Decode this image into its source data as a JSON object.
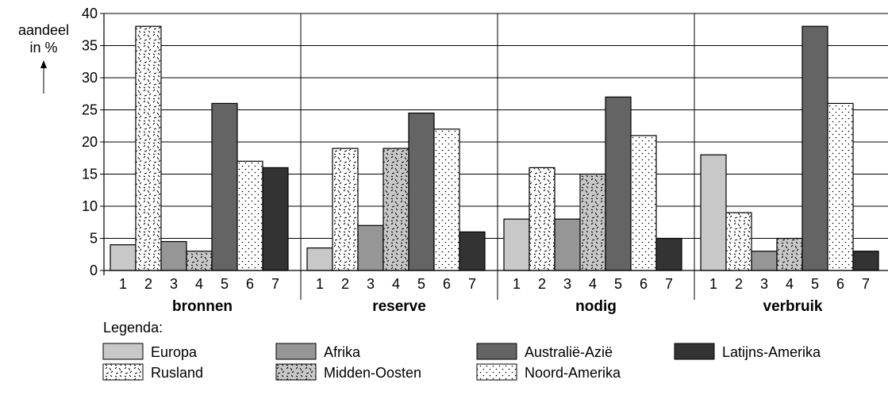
{
  "chart_data": {
    "type": "bar",
    "ylabel_lines": [
      "aandeel",
      "in %"
    ],
    "ylabel_arrow": "↑",
    "ylim": [
      0,
      40
    ],
    "yticks": [
      0,
      5,
      10,
      15,
      20,
      25,
      30,
      35,
      40
    ],
    "grid": "horizontal",
    "category_ticks": [
      "1",
      "2",
      "3",
      "4",
      "5",
      "6",
      "7"
    ],
    "groups": [
      {
        "label": "bronnen",
        "values": [
          4,
          38,
          4.5,
          3,
          26,
          17,
          16
        ]
      },
      {
        "label": "reserve",
        "values": [
          3.5,
          19,
          7,
          19,
          24.5,
          22,
          6
        ]
      },
      {
        "label": "nodig",
        "values": [
          8,
          16,
          8,
          15,
          27,
          21,
          5
        ]
      },
      {
        "label": "verbruik",
        "values": [
          18,
          9,
          3,
          5,
          38,
          26,
          3
        ]
      }
    ],
    "legend_title": "Legenda:",
    "series": [
      {
        "name": "Europa",
        "color": "#c8c8c8",
        "pattern": "solid"
      },
      {
        "name": "Rusland",
        "color": "#ffffff",
        "pattern": "dashes"
      },
      {
        "name": "Afrika",
        "color": "#969696",
        "pattern": "solid"
      },
      {
        "name": "Midden-Oosten",
        "color": "#c8c8c8",
        "pattern": "dashes"
      },
      {
        "name": "Australië-Azië",
        "color": "#646464",
        "pattern": "solid"
      },
      {
        "name": "Noord-Amerika",
        "color": "#ffffff",
        "pattern": "dots"
      },
      {
        "name": "Latijns-Amerika",
        "color": "#333333",
        "pattern": "solid"
      }
    ],
    "legend_order": [
      0,
      2,
      4,
      6,
      1,
      3,
      5
    ]
  }
}
